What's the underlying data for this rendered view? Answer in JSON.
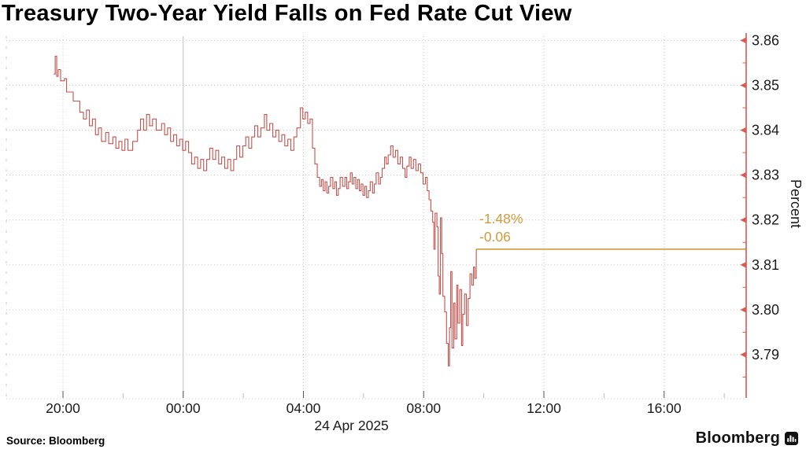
{
  "title": "Treasury Two-Year Yield Falls on Fed Rate Cut View",
  "source": "Source: Bloomberg",
  "branding": {
    "logo_text": "Bloomberg",
    "logo_icon": "bloomberg-bars-icon"
  },
  "colors": {
    "background": "#ffffff",
    "line": "#c4534e",
    "axis": "#dc5850",
    "marker_line": "#d29a3e",
    "marker_text": "#d29a3e",
    "grid": "#c9c9c9",
    "day_line": "#c0c0c0",
    "tick_text": "#1a1a1a",
    "bottom_tick": "#555555",
    "minor_bottom_tick": "#bbbbbb"
  },
  "chart_data": {
    "type": "line",
    "interpolation": "step",
    "title": "Treasury Two-Year Yield Falls on Fed Rate Cut View",
    "ylabel": "Percent",
    "grid": true,
    "x_axis": {
      "tick_labels": [
        "20:00",
        "00:00",
        "04:00",
        "08:00",
        "12:00",
        "16:00"
      ],
      "tick_hours": [
        0,
        4,
        8,
        12,
        16,
        20
      ],
      "minor_tick_hours": [
        2,
        6,
        10,
        14,
        18,
        22
      ],
      "date_label": "24 Apr 2025",
      "date_label_hour": 9.6,
      "range_hours": [
        -1.886,
        22.73
      ],
      "solid_gridline_hour": 4
    },
    "y_axis": {
      "side": "right",
      "label": "Percent",
      "ticks": [
        3.86,
        3.85,
        3.84,
        3.83,
        3.82,
        3.81,
        3.8,
        3.79
      ],
      "tick_labels": [
        "3.86",
        "3.85",
        "3.84",
        "3.83",
        "3.82",
        "3.81",
        "3.80",
        "3.79"
      ],
      "minor_step": 0.005,
      "range": [
        3.78,
        3.862
      ]
    },
    "last_price": {
      "value": 3.8135,
      "pct_change_label": "-1.48%",
      "change_label": "-0.06",
      "line_from_hour": 13.75,
      "line_to_hour": 22.73
    },
    "series": [
      {
        "points": [
          [
            -0.31,
            3.8525
          ],
          [
            -0.26,
            3.8565
          ],
          [
            -0.21,
            3.852
          ],
          [
            -0.16,
            3.8535
          ],
          [
            -0.08,
            3.851
          ],
          [
            0.05,
            3.8515
          ],
          [
            0.12,
            3.8485
          ],
          [
            0.28,
            3.8485
          ],
          [
            0.34,
            3.8465
          ],
          [
            0.5,
            3.8465
          ],
          [
            0.56,
            3.844
          ],
          [
            0.68,
            3.8425
          ],
          [
            0.78,
            3.8445
          ],
          [
            0.88,
            3.841
          ],
          [
            0.98,
            3.8425
          ],
          [
            1.08,
            3.839
          ],
          [
            1.18,
            3.8405
          ],
          [
            1.28,
            3.8375
          ],
          [
            1.42,
            3.8395
          ],
          [
            1.52,
            3.837
          ],
          [
            1.66,
            3.8385
          ],
          [
            1.76,
            3.836
          ],
          [
            1.86,
            3.8375
          ],
          [
            1.96,
            3.8355
          ],
          [
            2.06,
            3.838
          ],
          [
            2.16,
            3.8355
          ],
          [
            2.32,
            3.8375
          ],
          [
            2.48,
            3.84
          ],
          [
            2.58,
            3.8425
          ],
          [
            2.68,
            3.84
          ],
          [
            2.78,
            3.8435
          ],
          [
            2.88,
            3.841
          ],
          [
            2.98,
            3.8425
          ],
          [
            3.1,
            3.84
          ],
          [
            3.28,
            3.8415
          ],
          [
            3.38,
            3.839
          ],
          [
            3.48,
            3.8405
          ],
          [
            3.58,
            3.8375
          ],
          [
            3.68,
            3.839
          ],
          [
            3.78,
            3.8365
          ],
          [
            3.88,
            3.838
          ],
          [
            3.98,
            3.8355
          ],
          [
            4.08,
            3.8375
          ],
          [
            4.18,
            3.835
          ],
          [
            4.28,
            3.8325
          ],
          [
            4.38,
            3.834
          ],
          [
            4.48,
            3.8315
          ],
          [
            4.58,
            3.8335
          ],
          [
            4.68,
            3.831
          ],
          [
            4.78,
            3.8335
          ],
          [
            4.88,
            3.836
          ],
          [
            4.98,
            3.8335
          ],
          [
            5.08,
            3.8355
          ],
          [
            5.18,
            3.8325
          ],
          [
            5.28,
            3.834
          ],
          [
            5.38,
            3.8315
          ],
          [
            5.48,
            3.8335
          ],
          [
            5.58,
            3.831
          ],
          [
            5.68,
            3.8335
          ],
          [
            5.78,
            3.8365
          ],
          [
            5.88,
            3.834
          ],
          [
            5.98,
            3.8365
          ],
          [
            6.08,
            3.8385
          ],
          [
            6.18,
            3.836
          ],
          [
            6.28,
            3.8385
          ],
          [
            6.38,
            3.841
          ],
          [
            6.48,
            3.8385
          ],
          [
            6.58,
            3.8405
          ],
          [
            6.7,
            3.8435
          ],
          [
            6.78,
            3.84
          ],
          [
            6.88,
            3.8415
          ],
          [
            6.98,
            3.8385
          ],
          [
            7.08,
            3.84
          ],
          [
            7.18,
            3.8375
          ],
          [
            7.28,
            3.839
          ],
          [
            7.38,
            3.8365
          ],
          [
            7.48,
            3.838
          ],
          [
            7.58,
            3.8355
          ],
          [
            7.68,
            3.8385
          ],
          [
            7.78,
            3.8405
          ],
          [
            7.9,
            3.845
          ],
          [
            7.98,
            3.8425
          ],
          [
            8.06,
            3.844
          ],
          [
            8.14,
            3.8415
          ],
          [
            8.22,
            3.8425
          ],
          [
            8.3,
            3.836
          ],
          [
            8.38,
            3.8325
          ],
          [
            8.46,
            3.8295
          ],
          [
            8.54,
            3.8275
          ],
          [
            8.6,
            3.829
          ],
          [
            8.66,
            3.8265
          ],
          [
            8.72,
            3.8285
          ],
          [
            8.78,
            3.826
          ],
          [
            8.84,
            3.8275
          ],
          [
            8.9,
            3.8295
          ],
          [
            8.98,
            3.827
          ],
          [
            9.04,
            3.8285
          ],
          [
            9.1,
            3.8255
          ],
          [
            9.16,
            3.827
          ],
          [
            9.22,
            3.8295
          ],
          [
            9.3,
            3.8275
          ],
          [
            9.38,
            3.8295
          ],
          [
            9.44,
            3.827
          ],
          [
            9.5,
            3.8285
          ],
          [
            9.56,
            3.8305
          ],
          [
            9.62,
            3.828
          ],
          [
            9.68,
            3.8295
          ],
          [
            9.74,
            3.827
          ],
          [
            9.8,
            3.829
          ],
          [
            9.86,
            3.8265
          ],
          [
            9.92,
            3.828
          ],
          [
            9.98,
            3.8255
          ],
          [
            10.04,
            3.8275
          ],
          [
            10.1,
            3.825
          ],
          [
            10.16,
            3.8265
          ],
          [
            10.22,
            3.8285
          ],
          [
            10.3,
            3.826
          ],
          [
            10.36,
            3.828
          ],
          [
            10.42,
            3.8305
          ],
          [
            10.5,
            3.828
          ],
          [
            10.56,
            3.8295
          ],
          [
            10.62,
            3.8315
          ],
          [
            10.7,
            3.834
          ],
          [
            10.76,
            3.8325
          ],
          [
            10.82,
            3.8345
          ],
          [
            10.9,
            3.8365
          ],
          [
            10.98,
            3.834
          ],
          [
            11.06,
            3.8355
          ],
          [
            11.14,
            3.8325
          ],
          [
            11.22,
            3.834
          ],
          [
            11.3,
            3.8315
          ],
          [
            11.38,
            3.8295
          ],
          [
            11.44,
            3.832
          ],
          [
            11.52,
            3.834
          ],
          [
            11.58,
            3.8315
          ],
          [
            11.66,
            3.8335
          ],
          [
            11.74,
            3.831
          ],
          [
            11.82,
            3.8325
          ],
          [
            11.9,
            3.8305
          ],
          [
            11.98,
            3.828
          ],
          [
            12.06,
            3.8295
          ],
          [
            12.12,
            3.8265
          ],
          [
            12.18,
            3.8245
          ],
          [
            12.24,
            3.822
          ],
          [
            12.3,
            3.8195
          ],
          [
            12.34,
            3.8135
          ],
          [
            12.38,
            3.8215
          ],
          [
            12.44,
            3.8185
          ],
          [
            12.48,
            3.8075
          ],
          [
            12.52,
            3.8035
          ],
          [
            12.56,
            3.8205
          ],
          [
            12.6,
            3.8125
          ],
          [
            12.64,
            3.803
          ],
          [
            12.7,
            3.7995
          ],
          [
            12.76,
            3.7925
          ],
          [
            12.82,
            3.7875
          ],
          [
            12.86,
            3.796
          ],
          [
            12.9,
            3.8085
          ],
          [
            12.94,
            3.7915
          ],
          [
            13.0,
            3.8015
          ],
          [
            13.04,
            3.7935
          ],
          [
            13.1,
            3.8055
          ],
          [
            13.14,
            3.797
          ],
          [
            13.2,
            3.8045
          ],
          [
            13.26,
            3.792
          ],
          [
            13.3,
            3.799
          ],
          [
            13.36,
            3.8035
          ],
          [
            13.42,
            3.7965
          ],
          [
            13.48,
            3.8025
          ],
          [
            13.54,
            3.808
          ],
          [
            13.6,
            3.8055
          ],
          [
            13.66,
            3.8095
          ],
          [
            13.7,
            3.807
          ],
          [
            13.75,
            3.8135
          ]
        ]
      }
    ]
  }
}
